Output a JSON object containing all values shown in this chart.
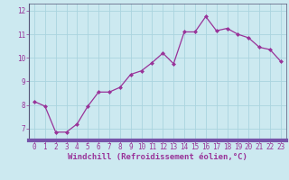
{
  "x": [
    0,
    1,
    2,
    3,
    4,
    5,
    6,
    7,
    8,
    9,
    10,
    11,
    12,
    13,
    14,
    15,
    16,
    17,
    18,
    19,
    20,
    21,
    22,
    23
  ],
  "y": [
    8.15,
    7.95,
    6.85,
    6.85,
    7.2,
    7.95,
    8.55,
    8.55,
    8.75,
    9.3,
    9.45,
    9.8,
    10.2,
    9.75,
    11.1,
    11.1,
    11.75,
    11.15,
    11.25,
    11.0,
    10.85,
    10.45,
    10.35,
    9.85
  ],
  "line_color": "#993399",
  "marker": "D",
  "markersize": 2.0,
  "linewidth": 0.9,
  "xlabel": "Windchill (Refroidissement éolien,°C)",
  "xlabel_fontsize": 6.5,
  "ylim": [
    6.5,
    12.3
  ],
  "xlim": [
    -0.5,
    23.5
  ],
  "yticks": [
    7,
    8,
    9,
    10,
    11,
    12
  ],
  "xticks": [
    0,
    1,
    2,
    3,
    4,
    5,
    6,
    7,
    8,
    9,
    10,
    11,
    12,
    13,
    14,
    15,
    16,
    17,
    18,
    19,
    20,
    21,
    22,
    23
  ],
  "background_color": "#cce9f0",
  "grid_color": "#aad4df",
  "tick_color": "#993399",
  "tick_fontsize": 5.5,
  "spine_color": "#555577",
  "xaxis_band_color": "#7755aa"
}
